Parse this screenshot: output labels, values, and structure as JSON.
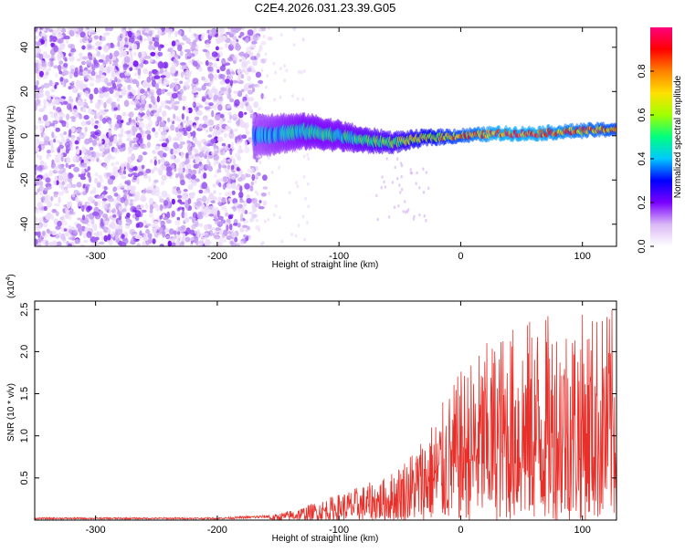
{
  "title": "C2E4.2026.031.23.39.G05",
  "chart_data": [
    {
      "type": "heatmap",
      "xlabel": "Height of straight line (km)",
      "ylabel": "Frequency (Hz)",
      "xlim": [
        -350,
        128
      ],
      "ylim": [
        -50,
        49
      ],
      "xticks": [
        -300,
        -200,
        -100,
        0,
        100
      ],
      "yticks": [
        -40,
        -20,
        0,
        20,
        40
      ],
      "colorbar": {
        "label": "Normalized spectral amplitude",
        "ticks": [
          "0.0",
          "0.2",
          "0.4",
          "0.6",
          "0.8"
        ],
        "range": [
          0,
          1
        ],
        "colormap": [
          "#ffffff",
          "#d9b8f5",
          "#7a00ff",
          "#0000ff",
          "#00c8ff",
          "#00ff80",
          "#a0ff00",
          "#ffe000",
          "#ff8000",
          "#ff0000",
          "#ff0080"
        ]
      },
      "noise_region": {
        "x_range": [
          -350,
          -170
        ],
        "freq_range": [
          -50,
          49
        ],
        "level": "low (0.0-0.2)"
      },
      "signal_track": [
        {
          "x": -170,
          "freq": 0,
          "width": 18,
          "level": 0.35
        },
        {
          "x": -150,
          "freq": 1,
          "width": 16,
          "level": 0.4
        },
        {
          "x": -125,
          "freq": 2,
          "width": 14,
          "level": 0.45
        },
        {
          "x": -100,
          "freq": 0,
          "width": 12,
          "level": 0.45
        },
        {
          "x": -80,
          "freq": -2,
          "width": 10,
          "level": 0.5
        },
        {
          "x": -55,
          "freq": -3,
          "width": 8,
          "level": 0.55
        },
        {
          "x": -30,
          "freq": -1,
          "width": 6,
          "level": 0.65
        },
        {
          "x": 0,
          "freq": 0,
          "width": 5,
          "level": 0.75
        },
        {
          "x": 30,
          "freq": 1,
          "width": 5,
          "level": 0.85
        },
        {
          "x": 60,
          "freq": 1,
          "width": 5,
          "level": 0.85
        },
        {
          "x": 90,
          "freq": 2,
          "width": 5,
          "level": 0.8
        },
        {
          "x": 128,
          "freq": 3,
          "width": 5,
          "level": 0.75
        }
      ]
    },
    {
      "type": "line",
      "xlabel": "Height of straight line (km)",
      "ylabel": "SNR (10 * v/v)",
      "yscale_label": "(x10",
      "yscale_exp": "4",
      "yscale_close": ")",
      "xlim": [
        -350,
        128
      ],
      "ylim": [
        0,
        2.6
      ],
      "xticks": [
        -300,
        -200,
        -100,
        0,
        100
      ],
      "yticks": [
        0.5,
        1.0,
        1.5,
        2.0,
        2.5
      ],
      "ytick_labels": [
        "0.5",
        "1.0",
        "1.5",
        "2.0",
        "2.5"
      ],
      "color": "#e8302a",
      "envelope": [
        {
          "x": -350,
          "y": 0.02
        },
        {
          "x": -200,
          "y": 0.02
        },
        {
          "x": -160,
          "y": 0.04
        },
        {
          "x": -130,
          "y": 0.15
        },
        {
          "x": -100,
          "y": 0.3
        },
        {
          "x": -80,
          "y": 0.4
        },
        {
          "x": -60,
          "y": 0.5
        },
        {
          "x": -40,
          "y": 0.8
        },
        {
          "x": -20,
          "y": 1.2
        },
        {
          "x": 0,
          "y": 1.7
        },
        {
          "x": 20,
          "y": 2.0
        },
        {
          "x": 40,
          "y": 2.2
        },
        {
          "x": 60,
          "y": 2.3
        },
        {
          "x": 80,
          "y": 2.35
        },
        {
          "x": 100,
          "y": 2.35
        },
        {
          "x": 128,
          "y": 2.4
        }
      ]
    }
  ]
}
